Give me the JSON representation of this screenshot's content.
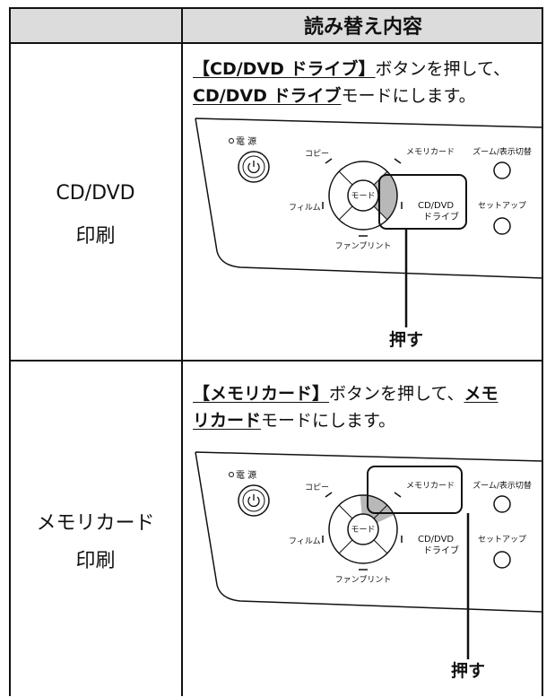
{
  "table": {
    "header": {
      "title": "読み替え内容"
    },
    "rows": [
      {
        "label": [
          "CD/DVD",
          "印刷"
        ],
        "lines": [
          [
            {
              "text": "【CD/DVD ドライブ】",
              "bold": true
            },
            {
              "text": "ボタンを押して、",
              "bold": false
            }
          ],
          [
            {
              "text": "CD/DVD ドライブ",
              "bold": true
            },
            {
              "text": "モードにします。",
              "bold": false
            }
          ]
        ],
        "panel": {
          "power": "電 源",
          "copy": "コピー",
          "card": "メモリカード",
          "zoom": "ズーム/表示切替",
          "film": "フィルム",
          "mode": "モード",
          "cd": [
            "CD/DVD",
            "ドライブ"
          ],
          "setup": "セットアップ",
          "fun": "ファンプリント"
        },
        "callout": "押す"
      },
      {
        "label": [
          "メモリカード",
          "印刷"
        ],
        "lines": [
          [
            {
              "text": "【メモリカード】",
              "bold": true
            },
            {
              "text": "ボタンを押して、",
              "bold": false
            },
            {
              "text": "メモ",
              "bold": true
            }
          ],
          [
            {
              "text": "リカード",
              "bold": true
            },
            {
              "text": "モードにします。",
              "bold": false
            }
          ]
        ],
        "panel": {
          "power": "電 源",
          "copy": "コピー",
          "card": "メモリカード",
          "zoom": "ズーム/表示切替",
          "film": "フィルム",
          "mode": "モード",
          "cd": [
            "CD/DVD",
            "ドライブ"
          ],
          "setup": "セットアップ",
          "fun": "ファンプリント"
        },
        "callout": "押す"
      }
    ]
  }
}
